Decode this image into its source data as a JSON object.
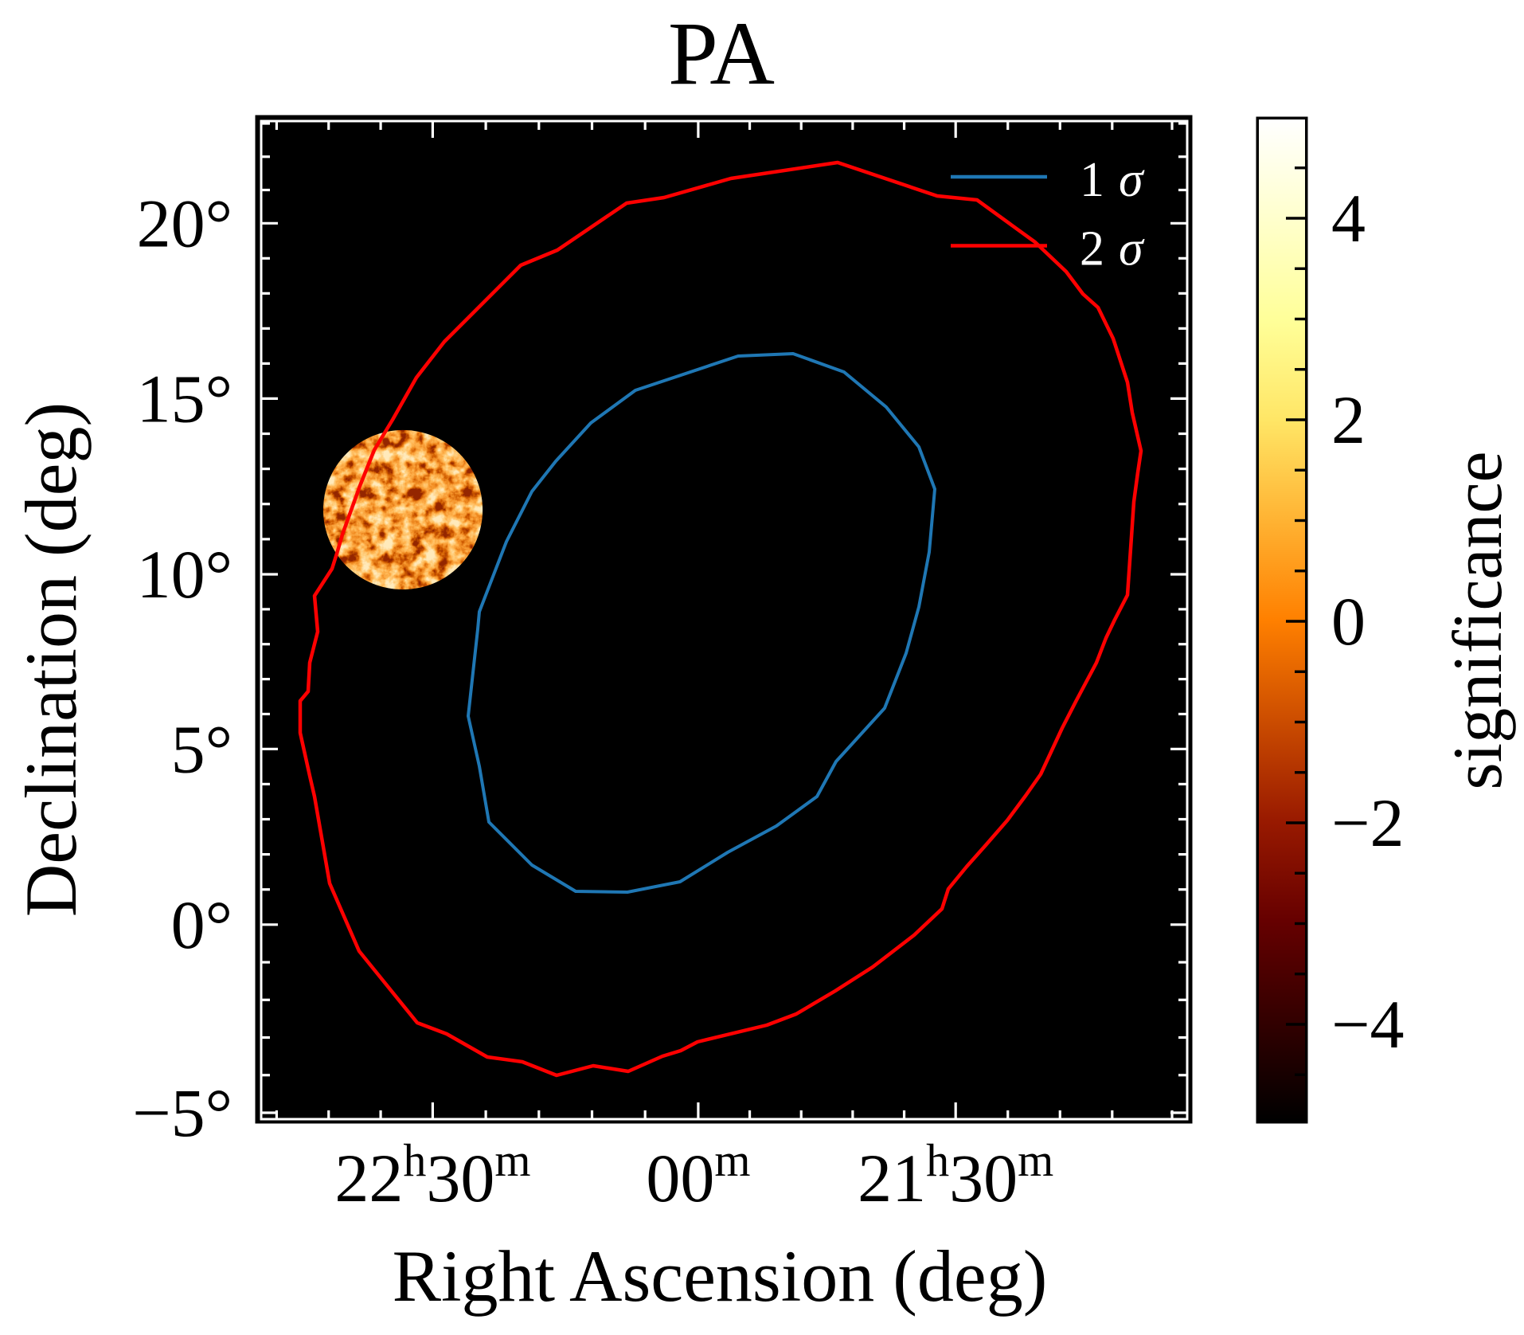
{
  "figure": {
    "title": "PA",
    "background_color": "#ffffff"
  },
  "chart_data": {
    "type": "contour",
    "title": "PA",
    "xlabel": "Right Ascension (deg)",
    "ylabel": "Declination (deg)",
    "x_axis": {
      "kind": "right ascension (hourangle, increases to the left)",
      "major_ticks": [
        {
          "ra_h": 22.5,
          "label": "22h30m",
          "segments": [
            [
              "22",
              "n"
            ],
            [
              "h",
              "s"
            ],
            [
              "30",
              "n"
            ],
            [
              "m",
              "s"
            ]
          ]
        },
        {
          "ra_h": 22.0,
          "label": "00m",
          "segments": [
            [
              "00",
              "n"
            ],
            [
              "m",
              "s"
            ]
          ]
        },
        {
          "ra_h": 21.5,
          "label": "21h30m",
          "segments": [
            [
              "21",
              "n"
            ],
            [
              "h",
              "s"
            ],
            [
              "30",
              "n"
            ],
            [
              "m",
              "s"
            ]
          ]
        }
      ],
      "minor_ticks_ra_h": [
        22.8,
        22.7,
        22.6,
        22.4,
        22.3,
        22.2,
        22.1,
        21.9,
        21.8,
        21.7,
        21.6,
        21.4,
        21.3,
        21.2,
        21.1
      ],
      "range_ra_h": [
        22.83,
        21.05
      ]
    },
    "y_axis": {
      "kind": "declination (degrees)",
      "major_ticks": [
        {
          "dec": 20,
          "label": "20°"
        },
        {
          "dec": 15,
          "label": "15°"
        },
        {
          "dec": 10,
          "label": "10°"
        },
        {
          "dec": 5,
          "label": "5°"
        },
        {
          "dec": 0,
          "label": "0°"
        },
        {
          "dec": -5,
          "label": "−5°"
        }
      ],
      "minor_ticks_dec": [
        23,
        22,
        21,
        19,
        18,
        17,
        16,
        14,
        13,
        12,
        11,
        9,
        8,
        7,
        6,
        4,
        3,
        2,
        1,
        -1,
        -2,
        -3,
        -4
      ],
      "range_dec": [
        -5.2,
        22.92
      ]
    },
    "projection_anchors": {
      "ra_h_to_xfrac": [
        [
          22.8,
          0.01668
        ],
        [
          22.5,
          0.18521
        ],
        [
          22.0,
          0.47197
        ],
        [
          21.5,
          0.74996
        ],
        [
          21.2,
          0.919
        ],
        [
          21.1,
          0.98366
        ]
      ],
      "dec_to_yfrac": [
        [
          23.0,
          0.00239
        ],
        [
          20.0,
          0.10239
        ],
        [
          15.0,
          0.27805
        ],
        [
          10.0,
          0.45411
        ],
        [
          5.0,
          0.62913
        ],
        [
          0.0,
          0.80511
        ],
        [
          -5.0,
          0.99362
        ]
      ]
    },
    "colorbar": {
      "label": "significance",
      "vmin": -5,
      "vmax": 5,
      "colormap": "afmhot",
      "major_ticks": [
        {
          "v": 4,
          "label": "4"
        },
        {
          "v": 2,
          "label": "2"
        },
        {
          "v": 0,
          "label": "0"
        },
        {
          "v": -2,
          "label": "−2"
        },
        {
          "v": -4,
          "label": "−4"
        }
      ],
      "minor_ticks_v": [
        4.5,
        3.5,
        3,
        2.5,
        1.5,
        1,
        0.5,
        -0.5,
        -1,
        -1.5,
        -2.5,
        -3,
        -3.5,
        -4.5
      ],
      "stops": [
        [
          5,
          "#ffffff"
        ],
        [
          4,
          "#ffffcc"
        ],
        [
          3,
          "#ffff99"
        ],
        [
          2,
          "#ffe666"
        ],
        [
          1,
          "#ffb333"
        ],
        [
          0,
          "#ff8000"
        ],
        [
          -1,
          "#cc4d00"
        ],
        [
          -2,
          "#991a00"
        ],
        [
          -3,
          "#660000"
        ],
        [
          -4,
          "#330000"
        ],
        [
          -5,
          "#000000"
        ]
      ]
    },
    "legend": {
      "entries": [
        {
          "label": "1 σ",
          "num": "1",
          "sym": "σ",
          "color": "#1f77b4"
        },
        {
          "label": "2 σ",
          "num": "2",
          "sym": "σ",
          "color": "#ff0000"
        }
      ]
    },
    "contours": [
      {
        "name": "1 sigma",
        "color": "#1f77b4",
        "points_ra_dec": [
          [
            21.8158,
            16.281
          ],
          [
            21.7168,
            15.759
          ],
          [
            21.6349,
            14.76
          ],
          [
            21.5715,
            13.626
          ],
          [
            21.5405,
            12.425
          ],
          [
            21.5513,
            10.635
          ],
          [
            21.5715,
            9.065
          ],
          [
            21.5962,
            7.743
          ],
          [
            21.638,
            6.17
          ],
          [
            21.7323,
            4.644
          ],
          [
            21.7694,
            3.646
          ],
          [
            21.8483,
            2.807
          ],
          [
            21.9426,
            2.059
          ],
          [
            22.0343,
            1.22
          ],
          [
            22.1333,
            0.925
          ],
          [
            22.2307,
            0.948
          ],
          [
            22.3132,
            1.696
          ],
          [
            22.3942,
            2.921
          ],
          [
            22.4121,
            4.508
          ],
          [
            22.4331,
            5.942
          ],
          [
            22.4151,
            8.427
          ],
          [
            22.4121,
            8.928
          ],
          [
            22.3612,
            10.929
          ],
          [
            22.3132,
            12.357
          ],
          [
            22.2682,
            13.218
          ],
          [
            22.2022,
            14.306
          ],
          [
            22.1183,
            15.236
          ],
          [
            21.9225,
            16.213
          ]
        ]
      },
      {
        "name": "2 sigma",
        "color": "#ff0000",
        "points_ra_dec": [
          [
            21.7292,
            21.827
          ],
          [
            21.5359,
            20.821
          ],
          [
            21.4591,
            20.702
          ],
          [
            21.3477,
            19.462
          ],
          [
            21.2882,
            18.621
          ],
          [
            21.2562,
            17.985
          ],
          [
            21.2272,
            17.599
          ],
          [
            21.1984,
            16.713
          ],
          [
            21.1745,
            15.463
          ],
          [
            21.1665,
            14.601
          ],
          [
            21.1519,
            13.513
          ],
          [
            21.1572,
            12.901
          ],
          [
            21.1638,
            12.063
          ],
          [
            21.1745,
            9.407
          ],
          [
            21.1957,
            8.7
          ],
          [
            21.2119,
            8.176
          ],
          [
            21.2302,
            7.469
          ],
          [
            21.2684,
            6.398
          ],
          [
            21.2958,
            5.6
          ],
          [
            21.337,
            4.281
          ],
          [
            21.366,
            3.669
          ],
          [
            21.4011,
            2.966
          ],
          [
            21.4423,
            2.263
          ],
          [
            21.4789,
            1.651
          ],
          [
            21.5142,
            1.016
          ],
          [
            21.5266,
            0.449
          ],
          [
            21.5807,
            -0.279
          ],
          [
            21.6612,
            -1.126
          ],
          [
            21.7338,
            -1.761
          ],
          [
            21.8096,
            -2.375
          ],
          [
            21.8668,
            -2.671
          ],
          [
            22.0013,
            -3.116
          ],
          [
            22.0328,
            -3.349
          ],
          [
            22.0673,
            -3.497
          ],
          [
            22.1318,
            -3.899
          ],
          [
            22.1978,
            -3.751
          ],
          [
            22.2667,
            -4.005
          ],
          [
            22.3312,
            -3.645
          ],
          [
            22.3972,
            -3.518
          ],
          [
            22.4736,
            -2.904
          ],
          [
            22.5297,
            -2.608
          ],
          [
            22.5955,
            -1.486
          ],
          [
            22.6414,
            -0.703
          ],
          [
            22.6981,
            1.175
          ],
          [
            22.7271,
            3.646
          ],
          [
            22.7363,
            4.236
          ],
          [
            22.7547,
            5.463
          ],
          [
            22.7547,
            6.375
          ],
          [
            22.7394,
            6.648
          ],
          [
            22.7363,
            7.469
          ],
          [
            22.721,
            8.358
          ],
          [
            22.7271,
            9.384
          ],
          [
            22.6935,
            10.159
          ],
          [
            22.6843,
            10.589
          ],
          [
            22.6736,
            11.133
          ],
          [
            22.6399,
            12.516
          ],
          [
            22.6123,
            13.536
          ],
          [
            22.5771,
            14.397
          ],
          [
            22.5312,
            15.6
          ],
          [
            22.4781,
            16.622
          ],
          [
            22.3342,
            18.803
          ],
          [
            22.2652,
            19.234
          ],
          [
            22.1348,
            20.606
          ],
          [
            22.0643,
            20.773
          ],
          [
            21.9364,
            21.348
          ]
        ]
      }
    ],
    "noise_patch": {
      "center_ra_h": 22.5572,
      "center_dec_deg": 11.836,
      "radius_deg": 2.27,
      "colormap": "afmhot",
      "description": "circular relative-significance noise map cutout"
    }
  }
}
